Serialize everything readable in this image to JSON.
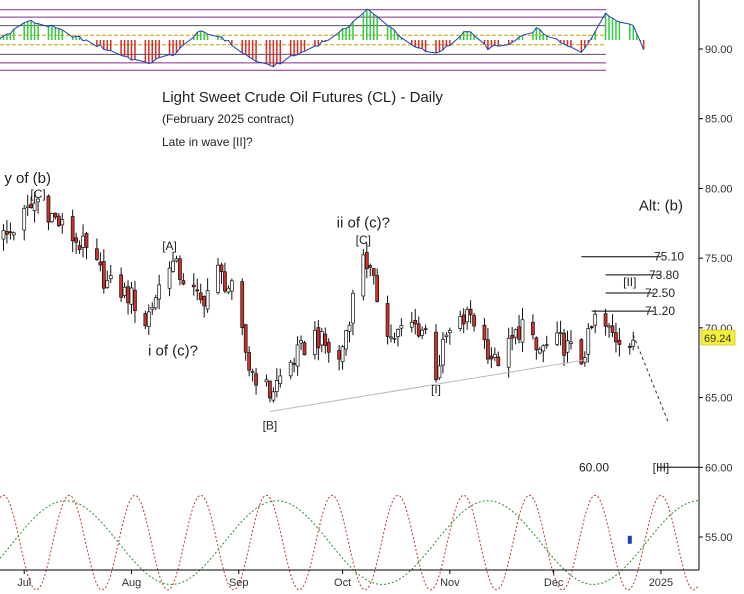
{
  "chart_data": {
    "type": "candlestick",
    "title": "Light Sweet Crude Oil Futures (CL) - Daily",
    "subtitle": "(February 2025 contract)",
    "note": "Late in wave [II]?",
    "last_price": "69.24",
    "y_ticks": [
      "90.00",
      "85.00",
      "80.00",
      "75.00",
      "70.00",
      "65.00",
      "60.00",
      "55.00"
    ],
    "x_ticks": [
      "Jul",
      "Aug",
      "Sep",
      "Oct",
      "Nov",
      "Dec",
      "2025"
    ],
    "ylim": [
      52.5,
      94.5
    ],
    "date_range": [
      "2024-06-24",
      "2025-01-12"
    ],
    "wave_labels": [
      {
        "text": "y of (b)",
        "date": "2024-07-02",
        "price": 80.4
      },
      {
        "text": "[C]",
        "date": "2024-07-05",
        "price": 79.3
      },
      {
        "text": "[A]",
        "date": "2024-08-12",
        "price": 75.6
      },
      {
        "text": "i of (c)?",
        "date": "2024-08-13",
        "price": 68.0
      },
      {
        "text": "ii of (c)?",
        "date": "2024-10-07",
        "price": 77.2
      },
      {
        "text": "[C]",
        "date": "2024-10-07",
        "price": 76.0
      },
      {
        "text": "[B]",
        "date": "2024-09-10",
        "price": 62.7
      },
      {
        "text": "[I]",
        "date": "2024-10-28",
        "price": 65.3
      },
      {
        "text": "[II]",
        "date": "2024-12-23",
        "price": 73.0
      },
      {
        "text": "[III]",
        "date": "2025-01-01",
        "price": 59.7
      },
      {
        "text": "Alt: (b)",
        "date": "2025-01-01",
        "price": 78.4
      }
    ],
    "levels": [
      {
        "label": "75.10",
        "value": 75.1,
        "from": "2024-12-09",
        "to": "2025-01-01"
      },
      {
        "label": "73.80",
        "value": 73.8,
        "from": "2024-12-16",
        "to": "2025-01-01"
      },
      {
        "label": "72.50",
        "value": 72.5,
        "from": "2024-12-16",
        "to": "2024-12-30"
      },
      {
        "label": "71.20",
        "value": 71.2,
        "from": "2024-12-12",
        "to": "2024-12-30"
      },
      {
        "label": "60.00",
        "value": 60.0,
        "from": "2024-12-31",
        "to": "2025-01-12"
      }
    ],
    "trendline": {
      "from": {
        "date": "2024-09-10",
        "price": 64.0
      },
      "to": {
        "date": "2024-12-10",
        "price": 67.7
      }
    },
    "projection": {
      "from": {
        "date": "2024-12-24",
        "price": 69.5
      },
      "to": {
        "date": "2025-01-03",
        "price": 63.3
      }
    },
    "anchors": [
      {
        "date": "2024-06-26",
        "price": 76.6
      },
      {
        "date": "2024-07-05",
        "price": 79.2
      },
      {
        "date": "2024-07-12",
        "price": 77.2
      },
      {
        "date": "2024-07-18",
        "price": 75.8
      },
      {
        "date": "2024-07-25",
        "price": 73.2
      },
      {
        "date": "2024-08-01",
        "price": 72.2
      },
      {
        "date": "2024-08-05",
        "price": 70.4
      },
      {
        "date": "2024-08-12",
        "price": 74.9
      },
      {
        "date": "2024-08-21",
        "price": 71.8
      },
      {
        "date": "2024-08-26",
        "price": 74.0
      },
      {
        "date": "2024-08-30",
        "price": 72.6
      },
      {
        "date": "2024-09-04",
        "price": 67.2
      },
      {
        "date": "2024-09-10",
        "price": 65.3
      },
      {
        "date": "2024-09-16",
        "price": 67.5
      },
      {
        "date": "2024-09-23",
        "price": 69.5
      },
      {
        "date": "2024-09-30",
        "price": 67.6
      },
      {
        "date": "2024-10-07",
        "price": 75.5
      },
      {
        "date": "2024-10-10",
        "price": 73.0
      },
      {
        "date": "2024-10-15",
        "price": 69.3
      },
      {
        "date": "2024-10-21",
        "price": 70.2
      },
      {
        "date": "2024-10-25",
        "price": 69.8
      },
      {
        "date": "2024-10-28",
        "price": 66.8
      },
      {
        "date": "2024-10-31",
        "price": 69.3
      },
      {
        "date": "2024-11-07",
        "price": 71.0
      },
      {
        "date": "2024-11-14",
        "price": 67.5
      },
      {
        "date": "2024-11-18",
        "price": 68.6
      },
      {
        "date": "2024-11-22",
        "price": 70.3
      },
      {
        "date": "2024-11-26",
        "price": 68.3
      },
      {
        "date": "2024-12-03",
        "price": 69.0
      },
      {
        "date": "2024-12-09",
        "price": 67.7
      },
      {
        "date": "2024-12-13",
        "price": 70.6
      },
      {
        "date": "2024-12-19",
        "price": 69.3
      },
      {
        "date": "2024-12-24",
        "price": 69.3
      }
    ],
    "oscillator": {
      "ylim": [
        -1.1,
        1.1
      ],
      "bands": [
        0.95,
        0.72,
        0.45,
        0.15,
        -0.15,
        -0.45,
        -0.72,
        -0.95
      ],
      "anchors": [
        {
          "date": "2024-06-24",
          "value": 0.05
        },
        {
          "date": "2024-07-02",
          "value": 0.6
        },
        {
          "date": "2024-07-08",
          "value": 0.45
        },
        {
          "date": "2024-07-16",
          "value": 0.1
        },
        {
          "date": "2024-07-25",
          "value": -0.3
        },
        {
          "date": "2024-08-05",
          "value": -0.75
        },
        {
          "date": "2024-08-14",
          "value": -0.4
        },
        {
          "date": "2024-08-20",
          "value": 0.25
        },
        {
          "date": "2024-08-27",
          "value": 0.1
        },
        {
          "date": "2024-09-04",
          "value": -0.55
        },
        {
          "date": "2024-09-10",
          "value": -0.85
        },
        {
          "date": "2024-09-20",
          "value": -0.35
        },
        {
          "date": "2024-09-30",
          "value": 0.2
        },
        {
          "date": "2024-10-08",
          "value": 0.95
        },
        {
          "date": "2024-10-14",
          "value": 0.5
        },
        {
          "date": "2024-10-21",
          "value": -0.2
        },
        {
          "date": "2024-10-28",
          "value": -0.45
        },
        {
          "date": "2024-11-06",
          "value": 0.3
        },
        {
          "date": "2024-11-12",
          "value": -0.25
        },
        {
          "date": "2024-11-18",
          "value": -0.15
        },
        {
          "date": "2024-11-26",
          "value": 0.35
        },
        {
          "date": "2024-12-03",
          "value": -0.1
        },
        {
          "date": "2024-12-09",
          "value": -0.4
        },
        {
          "date": "2024-12-16",
          "value": 0.8
        },
        {
          "date": "2024-12-24",
          "value": 0.45
        },
        {
          "date": "2024-12-27",
          "value": -0.25
        }
      ]
    },
    "cycles": [
      {
        "color": "#c0392b",
        "period_days": 19,
        "amplitude": 3.4,
        "center": 54.6,
        "phase_peak_date": "2024-06-25"
      },
      {
        "color": "#2e8b2e",
        "period_days": 61,
        "amplitude": 3.0,
        "center": 54.6,
        "phase_peak_date": "2024-07-13"
      }
    ],
    "last_marker_date": "2024-12-23",
    "grid": false
  }
}
